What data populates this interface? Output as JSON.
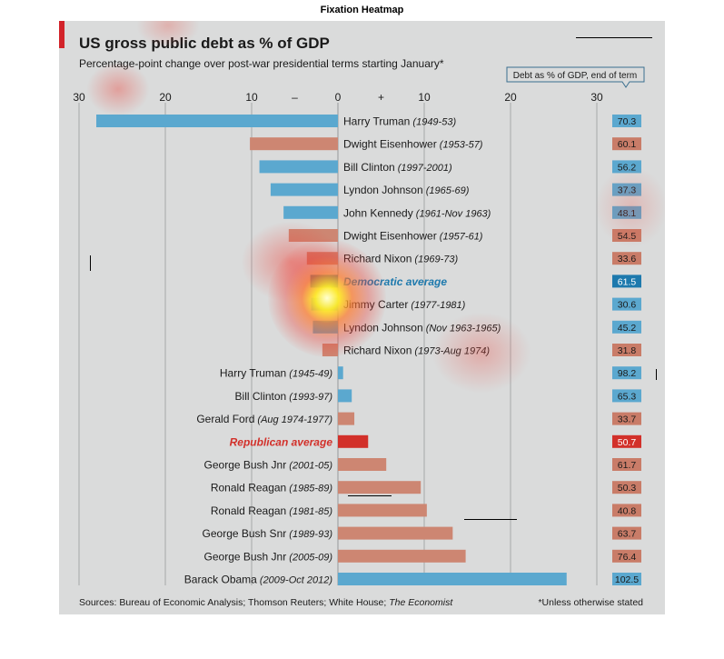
{
  "figure_title": "Fixation Heatmap",
  "chart_data": {
    "type": "bar",
    "title": "US gross public debt as % of GDP",
    "subtitle": "Percentage-point change over post-war presidential terms starting January*",
    "end_of_term_header": "Debt as % of GDP, end of term",
    "xlim": [
      -30,
      30
    ],
    "ticks": [
      {
        "value": -30,
        "label": "30"
      },
      {
        "value": -20,
        "label": "20"
      },
      {
        "value": -10,
        "label": "10"
      },
      {
        "value": -5,
        "label": "–"
      },
      {
        "value": 0,
        "label": "0"
      },
      {
        "value": 5,
        "label": "+"
      },
      {
        "value": 10,
        "label": "10"
      },
      {
        "value": 20,
        "label": "20"
      },
      {
        "value": 30,
        "label": "30"
      }
    ],
    "categories": [
      {
        "name": "Harry Truman",
        "term": "(1949-53)",
        "change": -28.0,
        "end_debt": "70.3",
        "color": "blue",
        "style": "normal"
      },
      {
        "name": "Dwight Eisenhower",
        "term": "(1953-57)",
        "change": -10.2,
        "end_debt": "60.1",
        "color": "red",
        "style": "normal"
      },
      {
        "name": "Bill Clinton",
        "term": "(1997-2001)",
        "change": -9.1,
        "end_debt": "56.2",
        "color": "blue",
        "style": "normal"
      },
      {
        "name": "Lyndon Johnson",
        "term": "(1965-69)",
        "change": -7.8,
        "end_debt": "37.3",
        "color": "blue",
        "style": "normal"
      },
      {
        "name": "John Kennedy",
        "term": "(1961-Nov 1963)",
        "change": -6.3,
        "end_debt": "48.1",
        "color": "blue",
        "style": "normal"
      },
      {
        "name": "Dwight Eisenhower",
        "term": "(1957-61)",
        "change": -5.7,
        "end_debt": "54.5",
        "color": "red",
        "style": "normal"
      },
      {
        "name": "Richard Nixon",
        "term": "(1969-73)",
        "change": -3.6,
        "end_debt": "33.6",
        "color": "red",
        "style": "normal"
      },
      {
        "name": "Democratic average",
        "term": "",
        "change": -3.2,
        "end_debt": "61.5",
        "color": "blue",
        "style": "dem-avg"
      },
      {
        "name": "Jimmy Carter",
        "term": "(1977-1981)",
        "change": -3.1,
        "end_debt": "30.6",
        "color": "blue",
        "style": "normal"
      },
      {
        "name": "Lyndon Johnson",
        "term": "(Nov 1963-1965)",
        "change": -2.9,
        "end_debt": "45.2",
        "color": "blue",
        "style": "normal"
      },
      {
        "name": "Richard Nixon",
        "term": "(1973-Aug 1974)",
        "change": -1.8,
        "end_debt": "31.8",
        "color": "red",
        "style": "normal"
      },
      {
        "name": "Harry Truman",
        "term": "(1945-49)",
        "change": 0.6,
        "end_debt": "98.2",
        "color": "blue",
        "style": "normal"
      },
      {
        "name": "Bill Clinton",
        "term": "(1993-97)",
        "change": 1.6,
        "end_debt": "65.3",
        "color": "blue",
        "style": "normal"
      },
      {
        "name": "Gerald Ford",
        "term": "(Aug 1974-1977)",
        "change": 1.9,
        "end_debt": "33.7",
        "color": "red",
        "style": "normal"
      },
      {
        "name": "Republican average",
        "term": "",
        "change": 3.5,
        "end_debt": "50.7",
        "color": "red",
        "style": "rep-avg"
      },
      {
        "name": "George Bush Jnr",
        "term": "(2001-05)",
        "change": 5.6,
        "end_debt": "61.7",
        "color": "red",
        "style": "normal"
      },
      {
        "name": "Ronald Reagan",
        "term": "(1985-89)",
        "change": 9.6,
        "end_debt": "50.3",
        "color": "red",
        "style": "normal"
      },
      {
        "name": "Ronald Reagan",
        "term": "(1981-85)",
        "change": 10.3,
        "end_debt": "40.8",
        "color": "red",
        "style": "normal"
      },
      {
        "name": "George Bush Snr",
        "term": "(1989-93)",
        "change": 13.3,
        "end_debt": "63.7",
        "color": "red",
        "style": "normal"
      },
      {
        "name": "George Bush Jnr",
        "term": "(2005-09)",
        "change": 14.8,
        "end_debt": "76.4",
        "color": "red",
        "style": "normal"
      },
      {
        "name": "Barack Obama",
        "term": "(2009-Oct 2012)",
        "change": 26.5,
        "end_debt": "102.5",
        "color": "blue",
        "style": "normal"
      }
    ],
    "sources_prefix": "Sources: Bureau of Economic Analysis; Thomson Reuters; White House; ",
    "sources_italic": "The Economist",
    "footnote": "*Unless otherwise stated",
    "colors": {
      "blue": "#5ba8cf",
      "red": "#cd8672",
      "red_end": "#c97c68",
      "dem_avg": "#1d79ad",
      "rep_avg": "#d2302a",
      "accent": "#d2232a",
      "grid": "#a7a9aa",
      "text": "#1a1a1a",
      "background": "#dadbdb"
    }
  }
}
